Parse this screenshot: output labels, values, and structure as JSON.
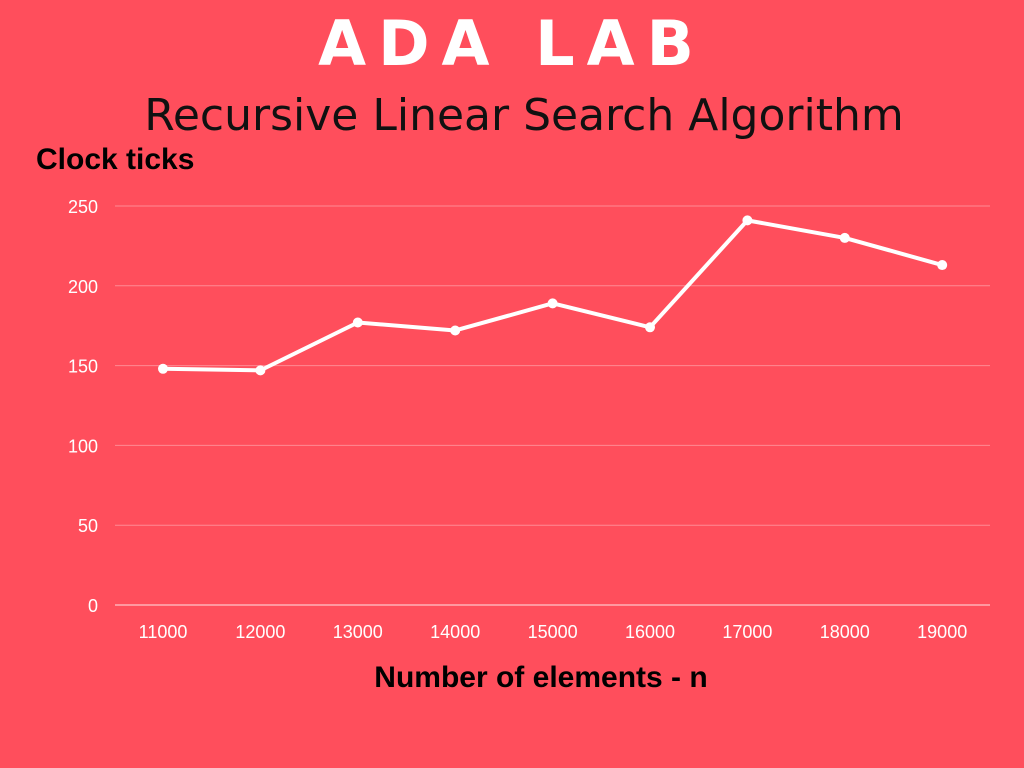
{
  "header": {
    "title": "ADA LAB",
    "subtitle": "Recursive Linear Search Algorithm"
  },
  "colors": {
    "background": "#ff4e5c",
    "line": "#ffffff",
    "grid": "#ff8a93"
  },
  "chart_data": {
    "type": "line",
    "title": "Recursive Linear Search Algorithm",
    "xlabel": "Number of elements - n",
    "ylabel": "Clock ticks",
    "categories": [
      "11000",
      "12000",
      "13000",
      "14000",
      "15000",
      "16000",
      "17000",
      "18000",
      "19000"
    ],
    "values": [
      148,
      147,
      177,
      172,
      189,
      174,
      241,
      230,
      213
    ],
    "ylim": [
      0,
      250
    ],
    "yticks": [
      0,
      50,
      100,
      150,
      200,
      250
    ],
    "grid": "horizontal",
    "legend": "none"
  }
}
